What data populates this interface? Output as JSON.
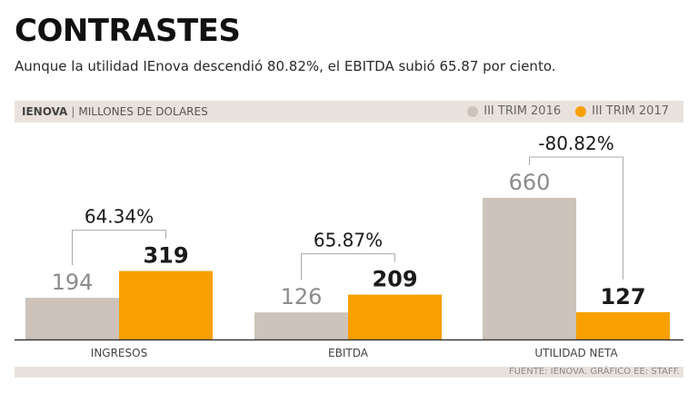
{
  "header": {
    "title": "CONTRASTES",
    "subtitle": "Aunque la utilidad IEnova descendió 80.82%, el EBITDA subió 65.87 por ciento."
  },
  "band": {
    "brand": "IENOVA",
    "separator": "|",
    "units": "MILLONES DE DOLARES"
  },
  "footer": {
    "source": "FUENTE: IENOVA. GRÁFICO EE: STAFF."
  },
  "colors": {
    "series_2016": "#cdc3ba",
    "series_2017": "#f7a000",
    "band": "#e9e2dc",
    "connector": "#a9a9a9"
  },
  "chart_data": {
    "type": "bar",
    "categories": [
      "INGRESOS",
      "EBITDA",
      "UTILIDAD NETA"
    ],
    "series": [
      {
        "name": "III TRIM 2016",
        "values": [
          194,
          126,
          660
        ]
      },
      {
        "name": "III TRIM 2017",
        "values": [
          319,
          209,
          127
        ]
      }
    ],
    "changes": [
      "64.34%",
      "65.87%",
      "-80.82%"
    ],
    "ylim": [
      0,
      720
    ],
    "grid": false,
    "legend": "top-right",
    "value_labels": true
  }
}
